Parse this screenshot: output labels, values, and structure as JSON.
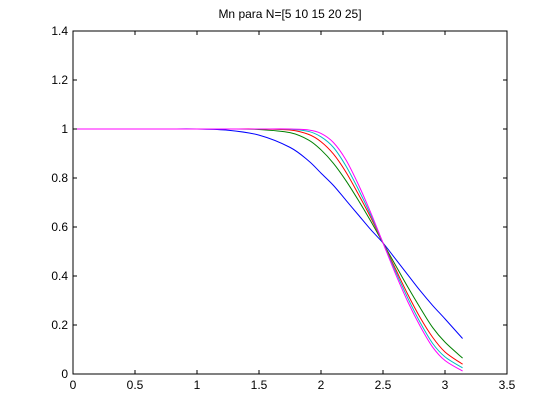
{
  "chart_data": {
    "type": "line",
    "title": "Mn para N=[5 10 15 20 25]",
    "xlabel": "",
    "ylabel": "",
    "xlim": [
      0,
      3.5
    ],
    "ylim": [
      0,
      1.4
    ],
    "xticks": [
      0,
      0.5,
      1,
      1.5,
      2,
      2.5,
      3,
      3.5
    ],
    "xtick_labels": [
      "0",
      "0.5",
      "1",
      "1.5",
      "2",
      "2.5",
      "3",
      "3.5"
    ],
    "yticks": [
      0,
      0.2,
      0.4,
      0.6,
      0.8,
      1,
      1.2,
      1.4
    ],
    "ytick_labels": [
      "0",
      "0.2",
      "0.4",
      "0.6",
      "0.8",
      "1",
      "1.2",
      "1.4"
    ],
    "grid": false,
    "legend": "none",
    "x": [
      0,
      0.25,
      0.5,
      0.75,
      1.0,
      1.25,
      1.5,
      1.75,
      1.9,
      2.0,
      2.1,
      2.2,
      2.3,
      2.4,
      2.5,
      2.6,
      2.7,
      2.8,
      2.9,
      3.0,
      3.1416
    ],
    "series": [
      {
        "color": "#0000ff",
        "values": [
          1,
          1,
          1,
          1,
          1.0,
          0.995,
          0.975,
          0.925,
          0.87,
          0.82,
          0.77,
          0.71,
          0.65,
          0.59,
          0.535,
          0.47,
          0.405,
          0.34,
          0.28,
          0.225,
          0.145
        ]
      },
      {
        "color": "#008000",
        "values": [
          1,
          1,
          1,
          1,
          1.0,
          1.0,
          0.998,
          0.985,
          0.955,
          0.915,
          0.86,
          0.79,
          0.71,
          0.625,
          0.535,
          0.445,
          0.355,
          0.27,
          0.19,
          0.13,
          0.065
        ]
      },
      {
        "color": "#ff0000",
        "values": [
          1,
          1,
          1,
          1,
          1.0,
          1.0,
          1.0,
          0.996,
          0.978,
          0.948,
          0.898,
          0.825,
          0.735,
          0.64,
          0.535,
          0.43,
          0.325,
          0.23,
          0.15,
          0.09,
          0.04
        ]
      },
      {
        "color": "#00bfbf",
        "values": [
          1,
          1,
          1,
          1,
          1.0,
          1.0,
          1.0,
          0.999,
          0.99,
          0.968,
          0.925,
          0.85,
          0.755,
          0.65,
          0.535,
          0.42,
          0.31,
          0.21,
          0.125,
          0.07,
          0.025
        ]
      },
      {
        "color": "#ff00ff",
        "values": [
          1,
          1,
          1,
          1,
          1.0,
          1.0,
          1.0,
          1.0,
          0.996,
          0.982,
          0.945,
          0.875,
          0.775,
          0.66,
          0.535,
          0.41,
          0.295,
          0.195,
          0.11,
          0.055,
          0.012
        ]
      }
    ]
  }
}
